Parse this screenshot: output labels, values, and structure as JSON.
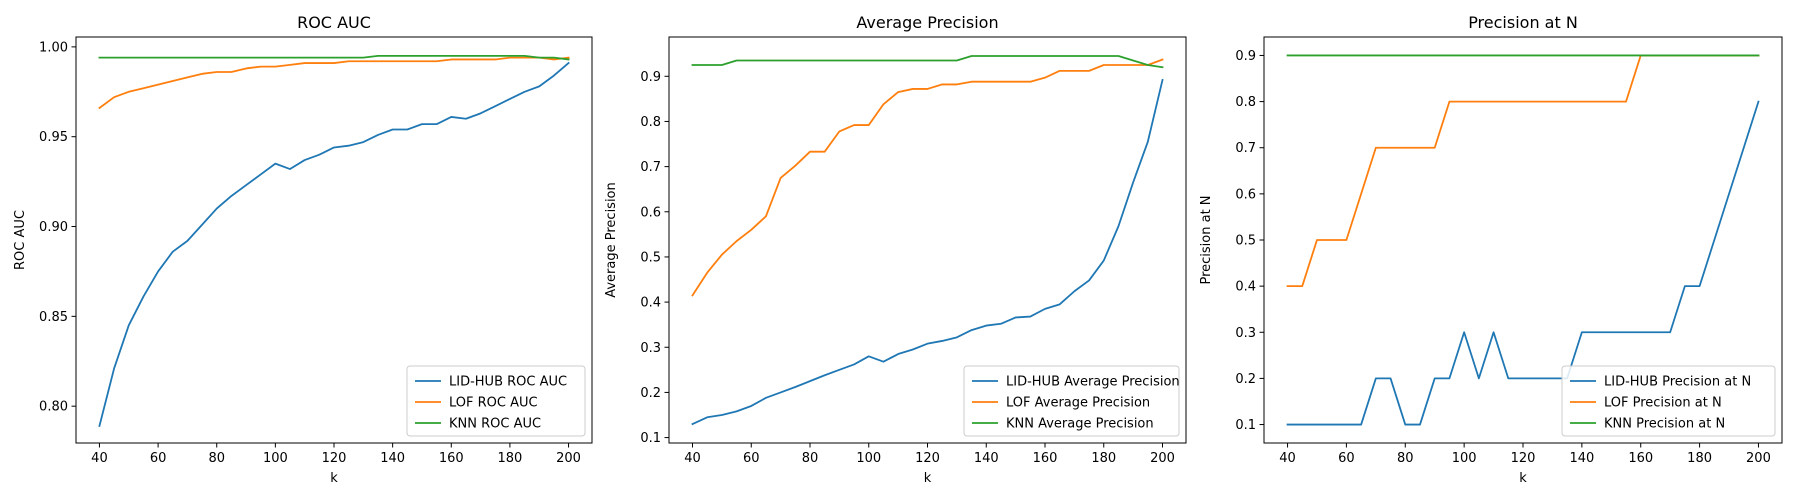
{
  "chart_data": [
    {
      "type": "line",
      "title": "ROC AUC",
      "xlabel": "k",
      "ylabel": "ROC AUC",
      "xlim": [
        32,
        208
      ],
      "ylim": [
        0.7795,
        1.0055
      ],
      "xticks": [
        40,
        60,
        80,
        100,
        120,
        140,
        160,
        180,
        200
      ],
      "yticks": [
        0.8,
        0.85,
        0.9,
        0.95,
        1.0
      ],
      "ytick_labels": [
        "0.80",
        "0.85",
        "0.90",
        "0.95",
        "1.00"
      ],
      "grid": false,
      "legend": "lower right",
      "x": [
        40,
        45,
        50,
        55,
        60,
        65,
        70,
        75,
        80,
        85,
        90,
        95,
        100,
        105,
        110,
        115,
        120,
        125,
        130,
        135,
        140,
        145,
        150,
        155,
        160,
        165,
        170,
        175,
        180,
        185,
        190,
        195,
        200
      ],
      "series": [
        {
          "name": "LID-HUB ROC AUC",
          "color": "#1f77b4",
          "values": [
            0.789,
            0.821,
            0.845,
            0.861,
            0.875,
            0.886,
            0.892,
            0.901,
            0.91,
            0.917,
            0.923,
            0.929,
            0.935,
            0.932,
            0.937,
            0.94,
            0.944,
            0.945,
            0.947,
            0.951,
            0.954,
            0.954,
            0.957,
            0.957,
            0.961,
            0.96,
            0.963,
            0.967,
            0.971,
            0.975,
            0.978,
            0.984,
            0.991
          ]
        },
        {
          "name": "LOF ROC AUC",
          "color": "#ff7f0e",
          "values": [
            0.966,
            0.972,
            0.975,
            0.977,
            0.979,
            0.981,
            0.983,
            0.985,
            0.986,
            0.986,
            0.988,
            0.989,
            0.989,
            0.99,
            0.991,
            0.991,
            0.991,
            0.992,
            0.992,
            0.992,
            0.992,
            0.992,
            0.992,
            0.992,
            0.993,
            0.993,
            0.993,
            0.993,
            0.994,
            0.994,
            0.994,
            0.993,
            0.994
          ]
        },
        {
          "name": "KNN ROC AUC",
          "color": "#2ca02c",
          "values": [
            0.994,
            0.994,
            0.994,
            0.994,
            0.994,
            0.994,
            0.994,
            0.994,
            0.994,
            0.994,
            0.994,
            0.994,
            0.994,
            0.994,
            0.994,
            0.994,
            0.994,
            0.994,
            0.994,
            0.995,
            0.995,
            0.995,
            0.995,
            0.995,
            0.995,
            0.995,
            0.995,
            0.995,
            0.995,
            0.995,
            0.994,
            0.994,
            0.993
          ]
        }
      ]
    },
    {
      "type": "line",
      "title": "Average Precision",
      "xlabel": "k",
      "ylabel": "Average Precision",
      "xlim": [
        32,
        208
      ],
      "ylim": [
        0.088,
        0.987
      ],
      "xticks": [
        40,
        60,
        80,
        100,
        120,
        140,
        160,
        180,
        200
      ],
      "yticks": [
        0.1,
        0.2,
        0.3,
        0.4,
        0.5,
        0.6,
        0.7,
        0.8,
        0.9
      ],
      "ytick_labels": [
        "0.1",
        "0.2",
        "0.3",
        "0.4",
        "0.5",
        "0.6",
        "0.7",
        "0.8",
        "0.9"
      ],
      "grid": false,
      "legend": "lower right",
      "x": [
        40,
        45,
        50,
        55,
        60,
        65,
        70,
        75,
        80,
        85,
        90,
        95,
        100,
        105,
        110,
        115,
        120,
        125,
        130,
        135,
        140,
        145,
        150,
        155,
        160,
        165,
        170,
        175,
        180,
        185,
        190,
        195,
        200
      ],
      "series": [
        {
          "name": "LID-HUB Average Precision",
          "color": "#1f77b4",
          "values": [
            0.13,
            0.145,
            0.15,
            0.158,
            0.17,
            0.188,
            0.2,
            0.212,
            0.225,
            0.238,
            0.25,
            0.262,
            0.28,
            0.268,
            0.285,
            0.295,
            0.308,
            0.314,
            0.322,
            0.338,
            0.348,
            0.352,
            0.366,
            0.368,
            0.385,
            0.395,
            0.424,
            0.448,
            0.492,
            0.568,
            0.665,
            0.755,
            0.892
          ]
        },
        {
          "name": "LOF Average Precision",
          "color": "#ff7f0e",
          "values": [
            0.415,
            0.465,
            0.505,
            0.535,
            0.56,
            0.59,
            0.675,
            0.702,
            0.733,
            0.733,
            0.778,
            0.792,
            0.792,
            0.838,
            0.865,
            0.872,
            0.872,
            0.882,
            0.882,
            0.888,
            0.888,
            0.888,
            0.888,
            0.888,
            0.897,
            0.912,
            0.912,
            0.912,
            0.925,
            0.925,
            0.925,
            0.925,
            0.937
          ]
        },
        {
          "name": "KNN Average Precision",
          "color": "#2ca02c",
          "values": [
            0.925,
            0.925,
            0.925,
            0.935,
            0.935,
            0.935,
            0.935,
            0.935,
            0.935,
            0.935,
            0.935,
            0.935,
            0.935,
            0.935,
            0.935,
            0.935,
            0.935,
            0.935,
            0.935,
            0.945,
            0.945,
            0.945,
            0.945,
            0.945,
            0.945,
            0.945,
            0.945,
            0.945,
            0.945,
            0.945,
            0.935,
            0.925,
            0.92
          ]
        }
      ]
    },
    {
      "type": "line",
      "title": "Precision at N",
      "xlabel": "k",
      "ylabel": "Precision at N",
      "xlim": [
        32,
        208
      ],
      "ylim": [
        0.06,
        0.94
      ],
      "xticks": [
        40,
        60,
        80,
        100,
        120,
        140,
        160,
        180,
        200
      ],
      "yticks": [
        0.1,
        0.2,
        0.3,
        0.4,
        0.5,
        0.6,
        0.7,
        0.8,
        0.9
      ],
      "ytick_labels": [
        "0.1",
        "0.2",
        "0.3",
        "0.4",
        "0.5",
        "0.6",
        "0.7",
        "0.8",
        "0.9"
      ],
      "grid": false,
      "legend": "lower right",
      "x": [
        40,
        45,
        50,
        55,
        60,
        65,
        70,
        75,
        80,
        85,
        90,
        95,
        100,
        105,
        110,
        115,
        120,
        125,
        130,
        135,
        140,
        145,
        150,
        155,
        160,
        165,
        170,
        175,
        180,
        185,
        190,
        195,
        200
      ],
      "series": [
        {
          "name": "LID-HUB Precision at N",
          "color": "#1f77b4",
          "values": [
            0.1,
            0.1,
            0.1,
            0.1,
            0.1,
            0.1,
            0.2,
            0.2,
            0.1,
            0.1,
            0.2,
            0.2,
            0.3,
            0.2,
            0.3,
            0.2,
            0.2,
            0.2,
            0.2,
            0.2,
            0.3,
            0.3,
            0.3,
            0.3,
            0.3,
            0.3,
            0.3,
            0.4,
            0.4,
            0.5,
            0.6,
            0.7,
            0.8
          ]
        },
        {
          "name": "LOF Precision at N",
          "color": "#ff7f0e",
          "values": [
            0.4,
            0.4,
            0.5,
            0.5,
            0.5,
            0.6,
            0.7,
            0.7,
            0.7,
            0.7,
            0.7,
            0.8,
            0.8,
            0.8,
            0.8,
            0.8,
            0.8,
            0.8,
            0.8,
            0.8,
            0.8,
            0.8,
            0.8,
            0.8,
            0.9,
            0.9,
            0.9,
            0.9,
            0.9,
            0.9,
            0.9,
            0.9,
            0.9
          ]
        },
        {
          "name": "KNN Precision at N",
          "color": "#2ca02c",
          "values": [
            0.9,
            0.9,
            0.9,
            0.9,
            0.9,
            0.9,
            0.9,
            0.9,
            0.9,
            0.9,
            0.9,
            0.9,
            0.9,
            0.9,
            0.9,
            0.9,
            0.9,
            0.9,
            0.9,
            0.9,
            0.9,
            0.9,
            0.9,
            0.9,
            0.9,
            0.9,
            0.9,
            0.9,
            0.9,
            0.9,
            0.9,
            0.9,
            0.9
          ]
        }
      ]
    }
  ]
}
